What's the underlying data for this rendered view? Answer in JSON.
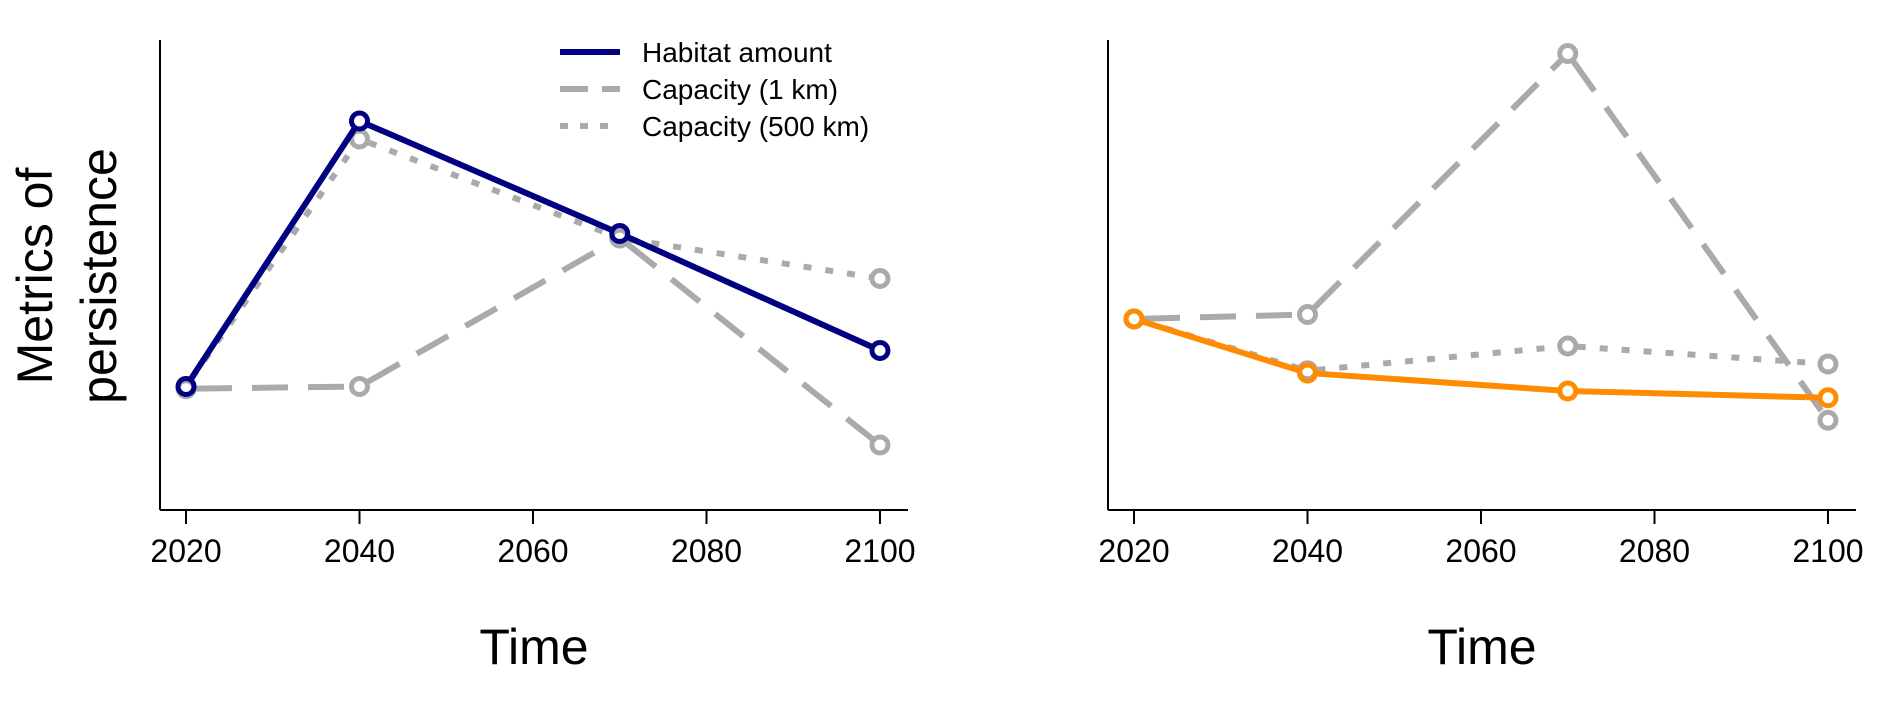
{
  "ylabel_line1": "Metrics of",
  "ylabel_line2": "persistence",
  "legend": [
    {
      "label": "Habitat amount",
      "style": "solid"
    },
    {
      "label": "Capacity (1 km)",
      "style": "dashed"
    },
    {
      "label": "Capacity (500 km)",
      "style": "dotted"
    }
  ],
  "chart_data": [
    {
      "type": "line",
      "xlabel": "Time",
      "ylabel": "Metrics of persistence",
      "xlim": [
        2017,
        2103
      ],
      "ylim": [
        0,
        1
      ],
      "x_ticks": [
        2020,
        2040,
        2060,
        2080,
        2100
      ],
      "y_ticks_shown": false,
      "grid": false,
      "legend_position": "top-right",
      "x": [
        2020,
        2040,
        2070,
        2100
      ],
      "series": [
        {
          "name": "Habitat amount",
          "style": "solid",
          "color": "#000080",
          "values": [
            0.23,
            0.82,
            0.57,
            0.31
          ]
        },
        {
          "name": "Capacity (1 km)",
          "style": "dashed",
          "color": "#aaaaaa",
          "values": [
            0.225,
            0.23,
            0.56,
            0.1
          ]
        },
        {
          "name": "Capacity (500 km)",
          "style": "dotted",
          "color": "#aaaaaa",
          "values": [
            0.23,
            0.78,
            0.56,
            0.47
          ]
        }
      ]
    },
    {
      "type": "line",
      "xlabel": "Time",
      "xlim": [
        2017,
        2103
      ],
      "ylim": [
        0,
        1
      ],
      "x_ticks": [
        2020,
        2040,
        2060,
        2080,
        2100
      ],
      "y_ticks_shown": false,
      "grid": false,
      "x": [
        2020,
        2040,
        2070,
        2100
      ],
      "series": [
        {
          "name": "Habitat amount",
          "style": "solid",
          "color": "#ff8c00",
          "values": [
            0.38,
            0.26,
            0.22,
            0.205
          ]
        },
        {
          "name": "Capacity (1 km)",
          "style": "dashed",
          "color": "#aaaaaa",
          "values": [
            0.38,
            0.39,
            0.97,
            0.155
          ]
        },
        {
          "name": "Capacity (500 km)",
          "style": "dotted",
          "color": "#aaaaaa",
          "values": [
            0.38,
            0.265,
            0.32,
            0.28
          ]
        }
      ]
    }
  ]
}
